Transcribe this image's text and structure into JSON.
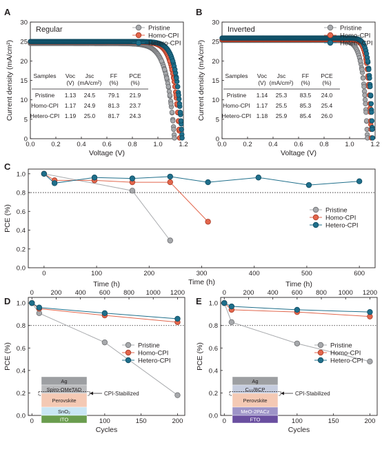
{
  "colors": {
    "pristine": "#a7a9ac",
    "homo": "#e2664c",
    "hetero": "#1f6f8b",
    "pristine_edge": "#6d6e71",
    "homo_edge": "#a93a25",
    "hetero_edge": "#0e4a60",
    "ref_line": "#231f20",
    "stack_top_gray": "#9d9fa2",
    "stack_htl_regular": "#b9babc",
    "stack_perovskite": "#f4c9b4",
    "stack_sno2": "#c9e6f4",
    "stack_ito": "#6a9d4e",
    "stack_c60": "#c5ccde",
    "stack_meo": "#9e94c8",
    "stack_fto": "#6a4fa0"
  },
  "chart_data": [
    {
      "panel": "A",
      "type": "line",
      "title": "Regular",
      "xlabel": "Voltage (V)",
      "ylabel": "Current density (mA/cm²)",
      "xlim": [
        0.0,
        1.2
      ],
      "ylim": [
        0,
        30
      ],
      "xticks": [
        "0.0",
        "0.2",
        "0.4",
        "0.6",
        "0.8",
        "1.0",
        "1.2"
      ],
      "yticks": [
        "0",
        "5",
        "10",
        "15",
        "20",
        "25",
        "30"
      ],
      "legend_position": "top-right",
      "series": [
        {
          "name": "Pristine",
          "key": "pristine",
          "jsc": 24.5,
          "voc": 1.13,
          "ff": 79.1
        },
        {
          "name": "Homo-CPI",
          "key": "homo",
          "jsc": 24.9,
          "voc": 1.17,
          "ff": 81.3
        },
        {
          "name": "Hetero-CPI",
          "key": "hetero",
          "jsc": 25.0,
          "voc": 1.19,
          "ff": 81.7
        }
      ],
      "table": {
        "headers": [
          "Samples",
          "Voc",
          "Jsc",
          "FF",
          "PCE"
        ],
        "units": [
          "",
          "(V)",
          "(mA/cm²)",
          "(%)",
          "(%)"
        ],
        "rows": [
          [
            "Pristine",
            "1.13",
            "24.5",
            "79.1",
            "21.9"
          ],
          [
            "Homo-CPI",
            "1.17",
            "24.9",
            "81.3",
            "23.7"
          ],
          [
            "Hetero-CPI",
            "1.19",
            "25.0",
            "81.7",
            "24.3"
          ]
        ]
      }
    },
    {
      "panel": "B",
      "type": "line",
      "title": "Inverted",
      "xlabel": "Voltage (V)",
      "ylabel": "Current density (mA/cm²)",
      "xlim": [
        0.0,
        1.2
      ],
      "ylim": [
        0,
        30
      ],
      "xticks": [
        "0.0",
        "0.2",
        "0.4",
        "0.6",
        "0.8",
        "1.0",
        "1.2"
      ],
      "yticks": [
        "0",
        "5",
        "10",
        "15",
        "20",
        "25",
        "30"
      ],
      "legend_position": "top-right",
      "series": [
        {
          "name": "Pristine",
          "key": "pristine",
          "jsc": 25.3,
          "voc": 1.14,
          "ff": 83.5
        },
        {
          "name": "Homo-CPI",
          "key": "homo",
          "jsc": 25.5,
          "voc": 1.17,
          "ff": 85.3
        },
        {
          "name": "Hetero-CPI",
          "key": "hetero",
          "jsc": 25.9,
          "voc": 1.18,
          "ff": 85.4
        }
      ],
      "table": {
        "headers": [
          "Samples",
          "Voc",
          "Jsc",
          "FF",
          "PCE"
        ],
        "units": [
          "",
          "(V)",
          "(mA/cm²)",
          "(%)",
          "(%)"
        ],
        "rows": [
          [
            "Pristine",
            "1.14",
            "25.3",
            "83.5",
            "24.0"
          ],
          [
            "Homo-CPI",
            "1.17",
            "25.5",
            "85.3",
            "25.4"
          ],
          [
            "Hetero-CPI",
            "1.18",
            "25.9",
            "85.4",
            "26.0"
          ]
        ]
      }
    },
    {
      "panel": "C",
      "type": "line",
      "xlabel": "Time (h)",
      "ylabel": "PCE (%)",
      "xlim": [
        -30,
        630
      ],
      "ylim": [
        0,
        1.05
      ],
      "xticks": [
        "0",
        "100",
        "200",
        "300",
        "400",
        "500",
        "600"
      ],
      "yticks": [
        "0.0",
        "0.2",
        "0.4",
        "0.6",
        "0.8",
        "1.0"
      ],
      "ref_line": 0.8,
      "legend_position": "center-right",
      "series": [
        {
          "name": "Pristine",
          "key": "pristine",
          "x": [
            0,
            168,
            240
          ],
          "y": [
            1.0,
            0.82,
            0.29
          ]
        },
        {
          "name": "Homo-CPI",
          "key": "homo",
          "x": [
            0,
            20,
            96,
            168,
            240,
            312
          ],
          "y": [
            1.0,
            0.93,
            0.93,
            0.91,
            0.91,
            0.49
          ]
        },
        {
          "name": "Hetero-CPI",
          "key": "hetero",
          "x": [
            0,
            20,
            96,
            168,
            240,
            312,
            408,
            504,
            600
          ],
          "y": [
            1.0,
            0.9,
            0.96,
            0.95,
            0.97,
            0.91,
            0.96,
            0.88,
            0.92
          ]
        }
      ]
    },
    {
      "panel": "D",
      "type": "line",
      "xlabel": "Cycles",
      "x2label": "Time (h)",
      "ylabel": "PCE (%)",
      "xlim": [
        -5,
        210
      ],
      "x2lim": [
        -30,
        1260
      ],
      "ylim": [
        0,
        1.05
      ],
      "xticks": [
        "0",
        "50",
        "100",
        "150",
        "200"
      ],
      "x2ticks": [
        "0",
        "200",
        "400",
        "600",
        "800",
        "1000",
        "1200"
      ],
      "yticks": [
        "0.0",
        "0.2",
        "0.4",
        "0.6",
        "0.8",
        "1.0"
      ],
      "ref_line": 0.8,
      "legend_position": "center-right",
      "series": [
        {
          "name": "Pristine",
          "key": "pristine",
          "x": [
            0,
            10,
            100,
            200
          ],
          "y": [
            1.0,
            0.91,
            0.65,
            0.18
          ]
        },
        {
          "name": "Homo-CPI",
          "key": "homo",
          "x": [
            0,
            10,
            100,
            200
          ],
          "y": [
            1.0,
            0.95,
            0.89,
            0.83
          ]
        },
        {
          "name": "Hetero-CPI",
          "key": "hetero",
          "x": [
            0,
            10,
            100,
            200
          ],
          "y": [
            1.0,
            0.96,
            0.91,
            0.86
          ]
        }
      ],
      "stack_layers": [
        "Ag",
        "Spiro-OMeTAD",
        "Perovskite",
        "SnO₂",
        "ITO"
      ],
      "stack_annotation": "CPI-Stabilized"
    },
    {
      "panel": "E",
      "type": "line",
      "xlabel": "Cycles",
      "x2label": "Time (h)",
      "ylabel": "PCE (%)",
      "xlim": [
        -5,
        210
      ],
      "x2lim": [
        -30,
        1260
      ],
      "ylim": [
        0,
        1.05
      ],
      "xticks": [
        "0",
        "50",
        "100",
        "150",
        "200"
      ],
      "x2ticks": [
        "0",
        "200",
        "400",
        "600",
        "800",
        "1000",
        "1200"
      ],
      "yticks": [
        "0.0",
        "0.2",
        "0.4",
        "0.6",
        "0.8",
        "1.0"
      ],
      "ref_line": 0.8,
      "legend_position": "center-right",
      "series": [
        {
          "name": "Pristine",
          "key": "pristine",
          "x": [
            0,
            10,
            100,
            200
          ],
          "y": [
            1.0,
            0.83,
            0.64,
            0.48
          ]
        },
        {
          "name": "Homo-CPI",
          "key": "homo",
          "x": [
            0,
            10,
            100,
            200
          ],
          "y": [
            1.0,
            0.94,
            0.92,
            0.88
          ]
        },
        {
          "name": "Hetero-CPI",
          "key": "hetero",
          "x": [
            0,
            10,
            100,
            200
          ],
          "y": [
            1.0,
            0.97,
            0.94,
            0.92
          ]
        }
      ],
      "stack_layers": [
        "Ag",
        "C₆₀/BCP",
        "Perovskite",
        "MeO-2PACz",
        "FTO"
      ],
      "stack_annotation": "CPI-Stabilized"
    }
  ]
}
